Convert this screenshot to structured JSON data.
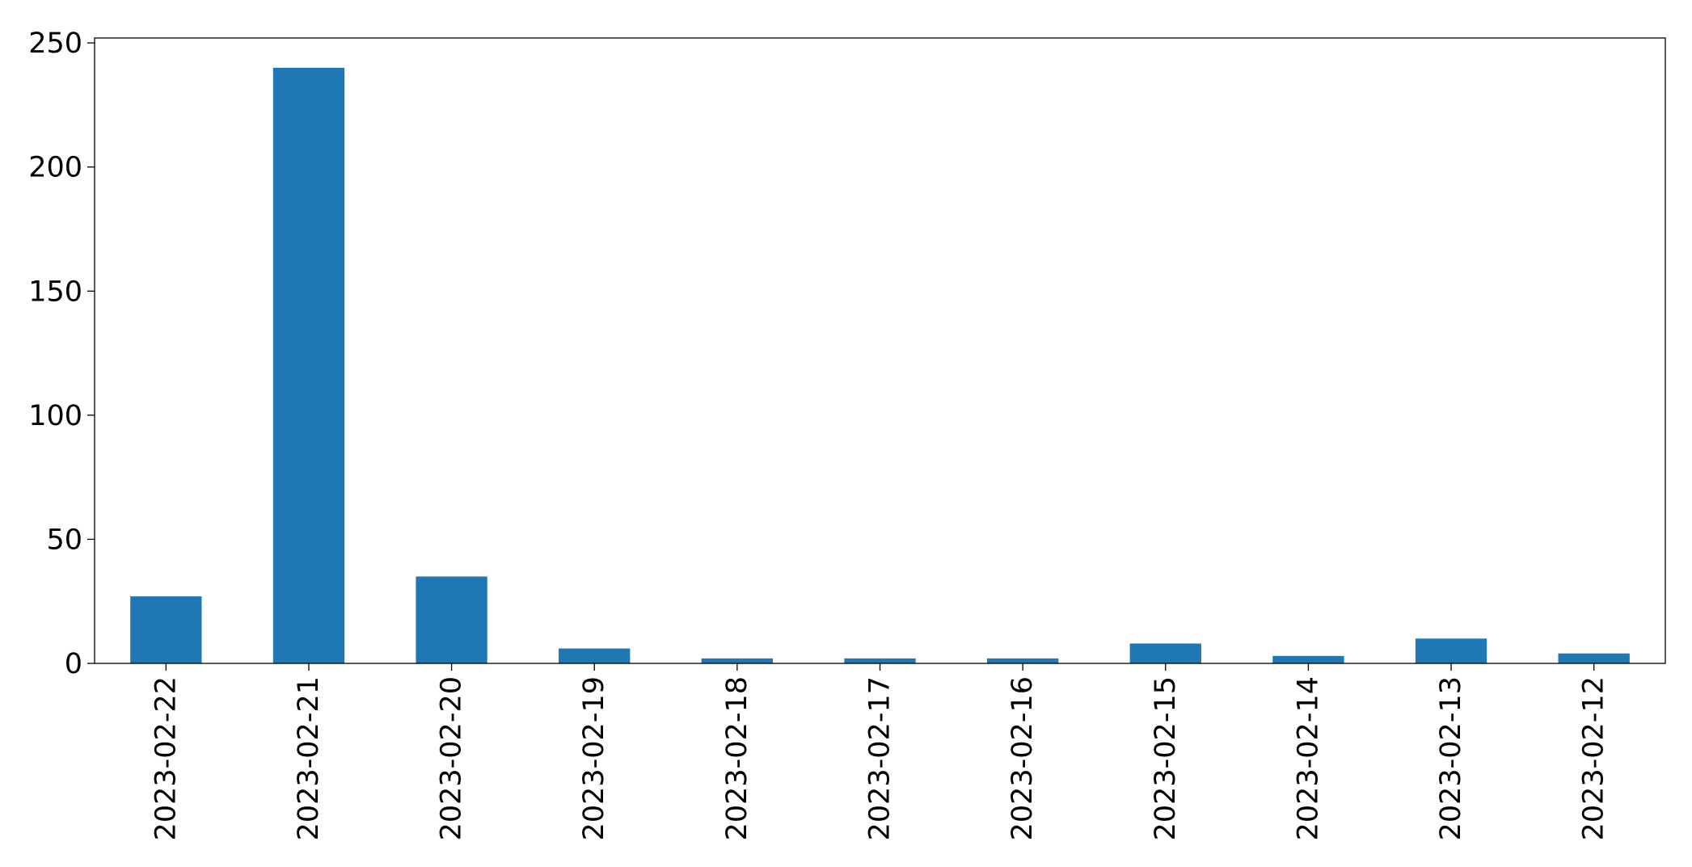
{
  "chart_data": {
    "type": "bar",
    "title": "",
    "xlabel": "",
    "ylabel": "",
    "categories": [
      "2023-02-22",
      "2023-02-21",
      "2023-02-20",
      "2023-02-19",
      "2023-02-18",
      "2023-02-17",
      "2023-02-16",
      "2023-02-15",
      "2023-02-14",
      "2023-02-13",
      "2023-02-12"
    ],
    "values": [
      27,
      240,
      35,
      6,
      2,
      2,
      2,
      8,
      3,
      10,
      4
    ],
    "ylim": [
      0,
      252
    ],
    "yticks": [
      0,
      50,
      100,
      150,
      200,
      250
    ],
    "grid": false,
    "legend": "none",
    "colors": {
      "bar": "#1f77b4",
      "axis": "#000000"
    }
  }
}
